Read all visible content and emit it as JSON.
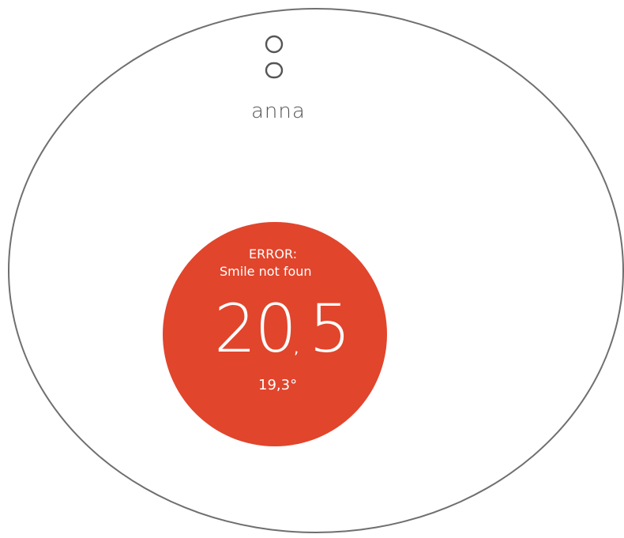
{
  "brand": {
    "name": "anna",
    "logo_icon": "anna-logo-icon"
  },
  "thermostat": {
    "status_title": "ERROR:",
    "status_message": "Smile not foun",
    "current_temp_integer": "20",
    "current_temp_separator": ",",
    "current_temp_decimal": "5",
    "setpoint": "19,3°",
    "dial_color": "#e1452c",
    "ring_color": "#6f6f6f"
  }
}
